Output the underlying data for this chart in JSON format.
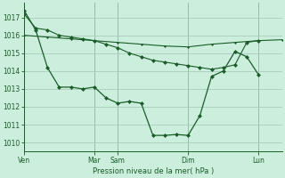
{
  "background_color": "#cceedd",
  "grid_color": "#aaccbb",
  "line_color": "#1a5c28",
  "xlabel": "Pression niveau de la mer( hPa )",
  "ylim": [
    1009.5,
    1017.8
  ],
  "yticks": [
    1010,
    1011,
    1012,
    1013,
    1014,
    1015,
    1016,
    1017
  ],
  "xtick_labels": [
    "Ven",
    "Mar",
    "Sam",
    "Dim",
    "Lun"
  ],
  "xtick_positions": [
    0,
    72,
    96,
    168,
    240
  ],
  "total_hours": 264,
  "line_flat_x": [
    0,
    24,
    48,
    72,
    96,
    120,
    144,
    168,
    192,
    216,
    240,
    264
  ],
  "line_flat_y": [
    1016.0,
    1015.9,
    1015.8,
    1015.7,
    1015.6,
    1015.5,
    1015.4,
    1015.35,
    1015.5,
    1015.6,
    1015.7,
    1015.75
  ],
  "line_mid_x": [
    0,
    12,
    24,
    36,
    48,
    60,
    72,
    84,
    96,
    108,
    120,
    132,
    144,
    156,
    168,
    180,
    192,
    204,
    216,
    228,
    240
  ],
  "line_mid_y": [
    1017.2,
    1016.4,
    1016.3,
    1016.0,
    1015.9,
    1015.8,
    1015.7,
    1015.5,
    1015.3,
    1015.0,
    1014.8,
    1014.6,
    1014.5,
    1014.4,
    1014.3,
    1014.2,
    1014.1,
    1014.2,
    1014.35,
    1015.6,
    1015.7
  ],
  "line_main_x": [
    0,
    12,
    24,
    36,
    48,
    60,
    72,
    84,
    96,
    108,
    120,
    132,
    144,
    156,
    168,
    180,
    192,
    204,
    216,
    228,
    240
  ],
  "line_main_y": [
    1017.4,
    1016.3,
    1014.2,
    1013.1,
    1013.1,
    1013.0,
    1013.1,
    1012.5,
    1012.2,
    1012.3,
    1012.2,
    1010.4,
    1010.4,
    1010.45,
    1010.4,
    1011.5,
    1013.7,
    1014.0,
    1015.1,
    1014.8,
    1013.8
  ]
}
